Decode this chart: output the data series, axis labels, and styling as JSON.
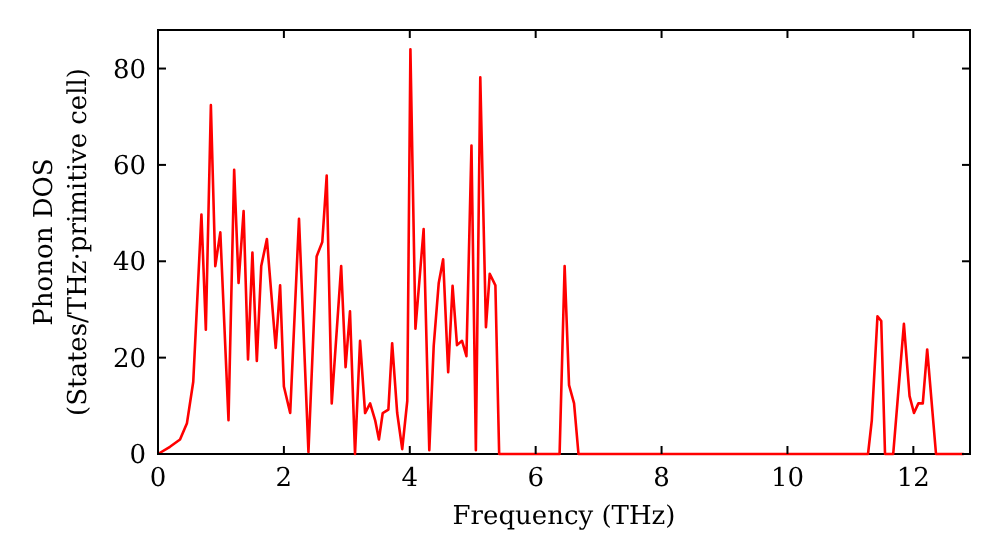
{
  "chart_data": {
    "type": "line",
    "xlabel": "Frequency (THz)",
    "ylabel": "Phonon DOS\n(States/THz·primitive cell)",
    "xlim": [
      0,
      12.9
    ],
    "ylim": [
      0,
      88
    ],
    "xticks": [
      0,
      2,
      4,
      6,
      8,
      10,
      12
    ],
    "yticks": [
      0,
      20,
      40,
      60,
      80
    ],
    "grid": false,
    "marker": "none",
    "line_style": "solid",
    "series": [
      {
        "color": "#ff0000",
        "x": [
          0,
          0.19,
          0.35,
          0.46,
          0.56,
          0.69,
          0.76,
          0.84,
          0.91,
          0.99,
          1.12,
          1.21,
          1.28,
          1.36,
          1.43,
          1.5,
          1.57,
          1.64,
          1.73,
          1.87,
          1.94,
          2.0,
          2.1,
          2.24,
          2.39,
          2.52,
          2.61,
          2.68,
          2.76,
          2.91,
          2.98,
          3.05,
          3.13,
          3.21,
          3.29,
          3.37,
          3.45,
          3.51,
          3.57,
          3.66,
          3.72,
          3.8,
          3.88,
          3.96,
          4.01,
          4.09,
          4.22,
          4.31,
          4.38,
          4.46,
          4.53,
          4.61,
          4.68,
          4.75,
          4.83,
          4.9,
          4.98,
          5.05,
          5.12,
          5.21,
          5.27,
          5.36,
          5.42,
          6.38,
          6.46,
          6.53,
          6.61,
          6.68,
          11.28,
          11.34,
          11.43,
          11.49,
          11.55,
          11.68,
          11.85,
          11.94,
          12.01,
          12.08,
          12.15,
          12.22,
          12.36,
          12.8
        ],
        "values": [
          0,
          1.5,
          3,
          6.4,
          15,
          49.7,
          25.8,
          72.4,
          39,
          46,
          7,
          59,
          35.5,
          50.4,
          19.6,
          41.8,
          19.3,
          39,
          44.6,
          22,
          35,
          14,
          8.5,
          48.8,
          0.4,
          41,
          44,
          57.8,
          10.5,
          39,
          18,
          29.6,
          0,
          23.5,
          8.5,
          10.5,
          7,
          3,
          8.5,
          9.2,
          23,
          8.5,
          1,
          11,
          84,
          26,
          46.7,
          0.8,
          22.4,
          35.5,
          40.4,
          17,
          34.9,
          22.6,
          23.5,
          20.3,
          64,
          0.8,
          78.2,
          26.3,
          37.4,
          35,
          0,
          0,
          39,
          14.3,
          10.5,
          0,
          0,
          7,
          28.6,
          27.6,
          0,
          0,
          27,
          12,
          8.5,
          10.5,
          10.5,
          21.7,
          0,
          0
        ]
      }
    ]
  }
}
